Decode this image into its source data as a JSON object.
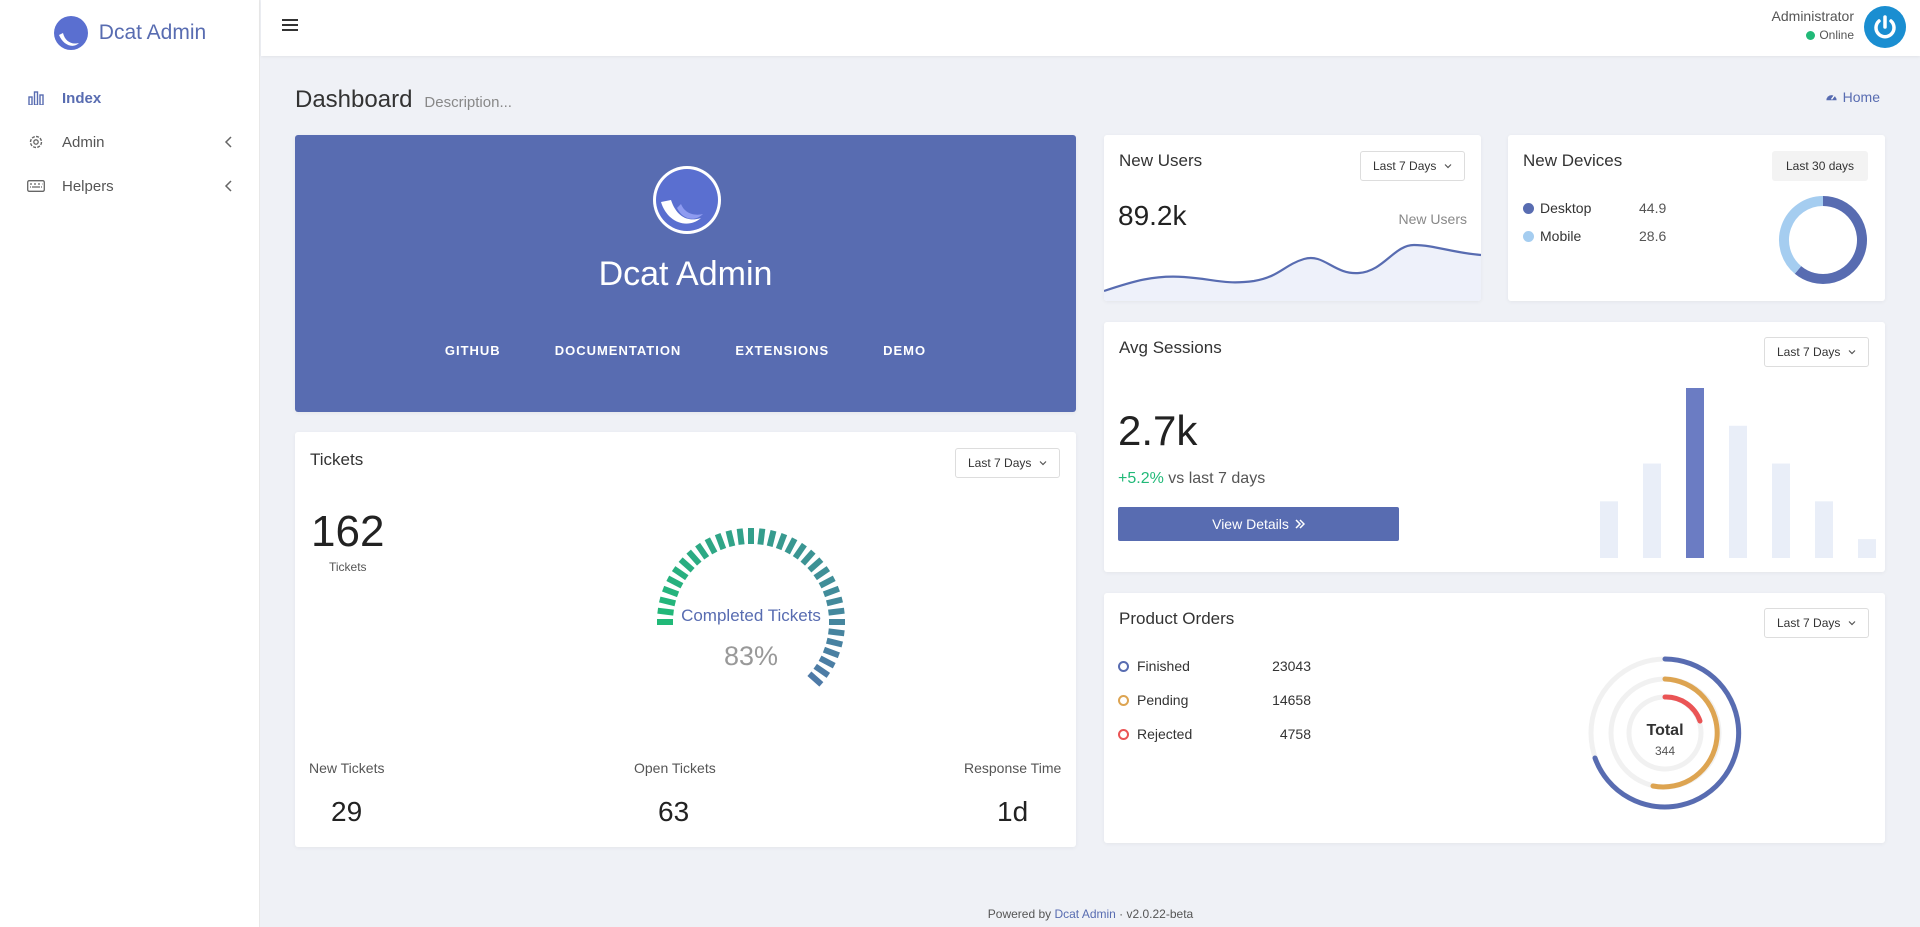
{
  "sidebar": {
    "brand": "Dcat Admin",
    "items": [
      {
        "label": "Index",
        "icon": "bar-chart-icon",
        "active": true
      },
      {
        "label": "Admin",
        "icon": "gear-icon"
      },
      {
        "label": "Helpers",
        "icon": "keyboard-icon"
      }
    ]
  },
  "topbar": {
    "user_name": "Administrator",
    "user_status": "Online"
  },
  "page": {
    "title": "Dashboard",
    "description": "Description...",
    "home_link": "Home"
  },
  "banner": {
    "title": "Dcat Admin",
    "links": [
      "GITHUB",
      "DOCUMENTATION",
      "EXTENSIONS",
      "DEMO"
    ]
  },
  "tickets": {
    "title": "Tickets",
    "range": "Last 7 Days",
    "count": "162",
    "count_label": "Tickets",
    "gauge_title": "Completed Tickets",
    "gauge_percent": "83%",
    "gauge_value": 83,
    "stats": [
      {
        "label": "New Tickets",
        "value": "29"
      },
      {
        "label": "Open Tickets",
        "value": "63"
      },
      {
        "label": "Response Time",
        "value": "1d"
      }
    ]
  },
  "new_users": {
    "title": "New Users",
    "range": "Last 7 Days",
    "value": "89.2k",
    "label": "New Users"
  },
  "new_devices": {
    "title": "New Devices",
    "range": "Last 30 days",
    "items": [
      {
        "label": "Desktop",
        "value": "44.9",
        "color": "#586cb1"
      },
      {
        "label": "Mobile",
        "value": "28.6",
        "color": "#a5cdf0"
      }
    ]
  },
  "avg_sessions": {
    "title": "Avg Sessions",
    "range": "Last 7 Days",
    "value": "2.7k",
    "delta": "+5.2%",
    "delta_text": " vs last 7 days",
    "button": "View Details",
    "bars": [
      30,
      50,
      90,
      70,
      50,
      30,
      10
    ]
  },
  "orders": {
    "title": "Product Orders",
    "range": "Last 7 Days",
    "items": [
      {
        "label": "Finished",
        "value": "23043",
        "color": "#586cb1"
      },
      {
        "label": "Pending",
        "value": "14658",
        "color": "#dda451"
      },
      {
        "label": "Rejected",
        "value": "4758",
        "color": "#ea5455"
      }
    ],
    "total_label": "Total",
    "total_value": "344"
  },
  "footer": {
    "prefix": "Powered by ",
    "link": "Dcat Admin",
    "version": " · v2.0.22-beta"
  }
}
